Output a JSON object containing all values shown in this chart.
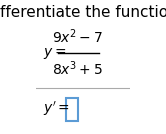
{
  "title": "Differentiate the function.",
  "title_fontsize": 11,
  "title_color": "#000000",
  "background_color": "#ffffff",
  "box_color": "#5b9bd5",
  "divider_color": "#aaaaaa",
  "fraction_line_color": "#000000",
  "font_color": "#000000"
}
